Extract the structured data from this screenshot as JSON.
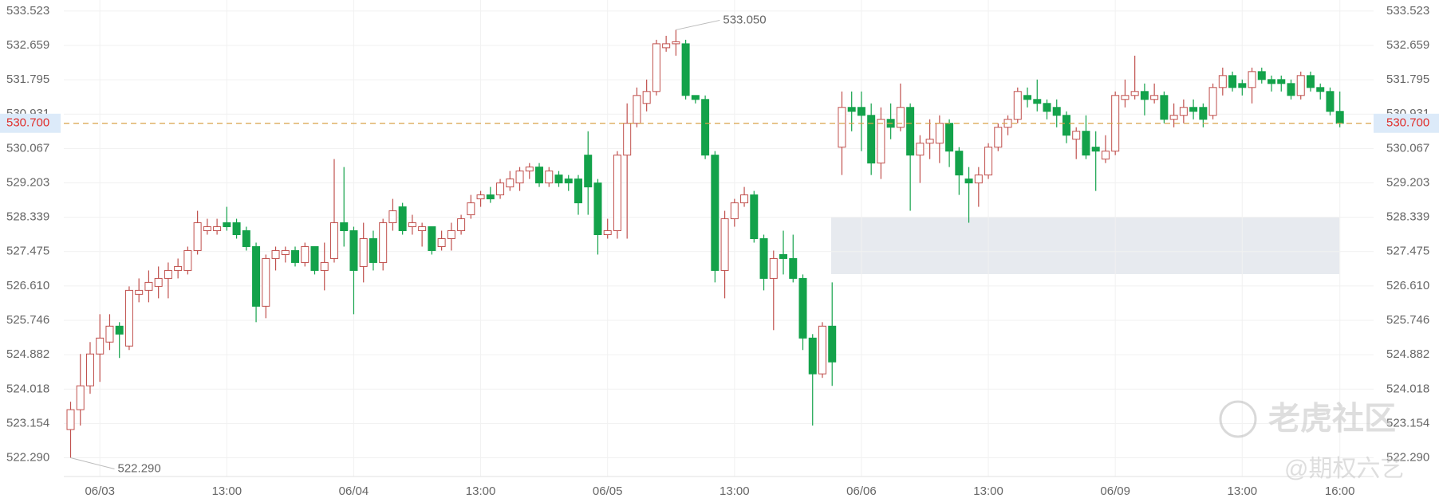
{
  "chart_data": {
    "type": "candlestick",
    "categories": [
      null,
      null,
      null,
      "06/03",
      null,
      null,
      null,
      null,
      null,
      null,
      null,
      null,
      null,
      null,
      null,
      null,
      "13:00",
      null,
      null,
      null,
      null,
      null,
      null,
      null,
      null,
      null,
      null,
      null,
      null,
      "06/04",
      null,
      null,
      null,
      null,
      null,
      null,
      null,
      null,
      null,
      null,
      null,
      null,
      "13:00",
      null,
      null,
      null,
      null,
      null,
      null,
      null,
      null,
      null,
      null,
      null,
      null,
      "06/05",
      null,
      null,
      null,
      null,
      null,
      null,
      null,
      null,
      null,
      null,
      null,
      null,
      "13:00",
      null,
      null,
      null,
      null,
      null,
      null,
      null,
      null,
      null,
      null,
      null,
      null,
      "06/06",
      null,
      null,
      null,
      null,
      null,
      null,
      null,
      null,
      null,
      null,
      null,
      null,
      "13:00",
      null,
      null,
      null,
      null,
      null,
      null,
      null,
      null,
      null,
      null,
      null,
      null,
      "06/09",
      null,
      null,
      null,
      null,
      null,
      null,
      null,
      null,
      null,
      null,
      null,
      null,
      "13:00",
      null,
      null,
      null,
      null,
      null,
      null,
      null,
      null,
      null,
      "16:00"
    ],
    "open": [
      523.0,
      523.5,
      524.1,
      524.9,
      525.2,
      525.6,
      525.1,
      526.4,
      526.5,
      526.6,
      526.8,
      527.0,
      527.0,
      527.5,
      528.0,
      528.0,
      528.2,
      528.2,
      528.0,
      527.6,
      526.1,
      527.3,
      527.4,
      527.5,
      527.2,
      527.6,
      527.0,
      527.3,
      528.2,
      528.0,
      527.1,
      527.8,
      527.2,
      528.2,
      528.6,
      528.1,
      528.0,
      528.1,
      527.6,
      527.8,
      528.0,
      528.4,
      528.8,
      528.9,
      528.9,
      529.1,
      529.2,
      529.5,
      529.6,
      529.2,
      529.4,
      529.3,
      529.3,
      529.9,
      529.2,
      527.9,
      528.0,
      529.9,
      530.7,
      531.2,
      531.5,
      532.6,
      532.7,
      532.7,
      531.4,
      531.3,
      529.9,
      527.0,
      528.3,
      528.7,
      528.9,
      527.8,
      526.8,
      527.4,
      527.3,
      526.8,
      525.3,
      524.4,
      525.6,
      530.1,
      531.1,
      531.1,
      530.9,
      529.7,
      530.8,
      530.6,
      531.1,
      529.9,
      530.2,
      530.2,
      530.7,
      530.0,
      529.3,
      529.2,
      529.4,
      530.1,
      530.6,
      530.8,
      531.4,
      531.3,
      531.2,
      531.1,
      530.9,
      530.3,
      530.5,
      530.1,
      529.8,
      530.0,
      531.3,
      531.4,
      531.5,
      531.3,
      531.4,
      530.8,
      530.9,
      531.1,
      531.1,
      530.9,
      531.6,
      531.9,
      531.7,
      531.6,
      532.0,
      531.8,
      531.8,
      531.7,
      531.4,
      531.9,
      531.6,
      531.5,
      531.0
    ],
    "high": [
      523.7,
      524.9,
      525.2,
      525.9,
      525.9,
      525.7,
      526.6,
      526.8,
      527.0,
      527.1,
      527.2,
      527.3,
      527.6,
      528.5,
      528.3,
      528.3,
      528.6,
      528.3,
      528.1,
      527.7,
      527.4,
      527.6,
      527.6,
      527.6,
      527.7,
      527.6,
      527.7,
      529.8,
      529.6,
      528.1,
      528.2,
      528.0,
      528.3,
      528.8,
      528.7,
      528.4,
      528.2,
      528.1,
      528.0,
      528.2,
      528.4,
      528.9,
      529.0,
      529.1,
      529.3,
      529.5,
      529.6,
      529.7,
      529.7,
      529.6,
      529.5,
      529.4,
      529.4,
      530.5,
      529.3,
      528.3,
      530.0,
      531.2,
      531.6,
      531.8,
      532.8,
      532.9,
      533.05,
      532.8,
      531.4,
      531.4,
      530.0,
      528.5,
      528.8,
      529.1,
      529.0,
      527.9,
      527.5,
      528.0,
      527.9,
      526.9,
      525.4,
      525.7,
      526.7,
      531.5,
      531.5,
      531.5,
      531.2,
      531.1,
      531.2,
      531.7,
      531.2,
      530.4,
      530.8,
      530.9,
      530.8,
      530.1,
      529.6,
      529.6,
      530.2,
      530.7,
      530.9,
      531.6,
      531.6,
      531.8,
      531.3,
      531.3,
      531.0,
      530.6,
      530.9,
      530.5,
      530.4,
      531.5,
      531.8,
      532.4,
      531.7,
      531.7,
      531.5,
      531.2,
      531.3,
      531.3,
      531.2,
      531.7,
      532.1,
      532.0,
      531.8,
      532.1,
      532.1,
      531.9,
      531.9,
      531.8,
      532.0,
      532.0,
      531.7,
      531.6,
      531.5
    ],
    "low": [
      522.29,
      523.1,
      523.9,
      524.2,
      525.0,
      524.8,
      525.0,
      526.2,
      526.2,
      526.3,
      526.3,
      526.8,
      526.9,
      527.4,
      527.9,
      527.9,
      528.0,
      527.8,
      527.5,
      525.7,
      525.8,
      527.0,
      527.2,
      527.1,
      527.1,
      526.9,
      526.5,
      527.2,
      527.6,
      525.9,
      526.7,
      527.0,
      527.0,
      528.0,
      527.9,
      527.9,
      527.6,
      527.4,
      527.5,
      527.5,
      527.9,
      528.3,
      528.6,
      528.7,
      528.8,
      529.0,
      529.0,
      529.3,
      529.1,
      529.1,
      529.1,
      529.0,
      528.4,
      528.4,
      527.4,
      527.8,
      527.8,
      527.8,
      530.6,
      531.0,
      531.4,
      532.5,
      532.4,
      531.3,
      531.2,
      529.8,
      526.7,
      526.3,
      528.1,
      528.6,
      527.7,
      526.5,
      525.5,
      526.9,
      526.7,
      525.0,
      523.1,
      524.3,
      524.1,
      529.4,
      530.5,
      530.0,
      529.4,
      529.3,
      530.3,
      530.5,
      528.5,
      529.2,
      529.8,
      529.7,
      529.6,
      528.9,
      528.2,
      528.6,
      529.3,
      530.0,
      530.4,
      530.7,
      531.1,
      531.0,
      530.8,
      530.6,
      530.2,
      529.8,
      529.8,
      529.0,
      529.7,
      529.9,
      531.1,
      531.3,
      530.9,
      531.2,
      530.7,
      530.6,
      530.7,
      530.8,
      530.6,
      530.8,
      531.4,
      531.5,
      531.4,
      531.2,
      531.7,
      531.5,
      531.5,
      531.3,
      531.3,
      531.5,
      531.3,
      530.9,
      530.6
    ],
    "close": [
      523.5,
      524.1,
      524.9,
      525.3,
      525.6,
      525.4,
      526.5,
      526.5,
      526.7,
      526.8,
      527.0,
      527.1,
      527.5,
      528.2,
      528.1,
      528.1,
      528.1,
      527.9,
      527.6,
      526.1,
      527.3,
      527.5,
      527.5,
      527.2,
      527.6,
      527.0,
      527.2,
      528.2,
      528.0,
      527.0,
      527.8,
      527.2,
      528.2,
      528.5,
      528.0,
      528.2,
      528.1,
      527.5,
      527.8,
      528.0,
      528.3,
      528.7,
      528.9,
      528.8,
      529.2,
      529.3,
      529.5,
      529.6,
      529.2,
      529.5,
      529.2,
      529.2,
      528.7,
      529.1,
      527.9,
      528.0,
      529.9,
      530.7,
      531.4,
      531.5,
      532.7,
      532.7,
      532.75,
      531.4,
      531.3,
      529.9,
      527.0,
      528.3,
      528.7,
      528.9,
      527.8,
      526.8,
      527.3,
      527.3,
      526.8,
      525.3,
      524.4,
      525.6,
      524.7,
      531.1,
      531.0,
      530.9,
      529.7,
      530.8,
      530.6,
      531.1,
      529.9,
      530.2,
      530.3,
      530.7,
      530.0,
      529.4,
      529.2,
      529.4,
      530.1,
      530.6,
      530.8,
      531.5,
      531.3,
      531.2,
      531.0,
      530.9,
      530.4,
      530.5,
      529.9,
      530.0,
      530.0,
      531.4,
      531.4,
      531.5,
      531.3,
      531.4,
      530.8,
      530.9,
      531.1,
      531.0,
      530.8,
      531.6,
      531.9,
      531.6,
      531.6,
      532.0,
      531.8,
      531.7,
      531.7,
      531.4,
      531.9,
      531.6,
      531.5,
      531.0,
      530.7
    ],
    "up_color": "#c0504d",
    "down_color": "#13a24a",
    "ylim": [
      521.82,
      533.8
    ],
    "yticks": [
      {
        "value": 522.29,
        "label": "522.290"
      },
      523.154,
      524.018,
      524.882,
      525.746,
      {
        "value": 526.61,
        "label": "526.610"
      },
      527.475,
      528.339,
      529.203,
      530.067,
      530.931,
      531.795,
      532.659,
      533.523
    ],
    "grid": true,
    "last_price": {
      "value": 530.7,
      "label": "530.700",
      "color": "#d9a24a"
    },
    "annotations": [
      {
        "value": 533.05,
        "label": "533.050"
      },
      {
        "value": 522.29,
        "label": "522.290"
      }
    ],
    "watermark": {
      "title": "老虎社区",
      "author": "@期权六艺"
    }
  }
}
